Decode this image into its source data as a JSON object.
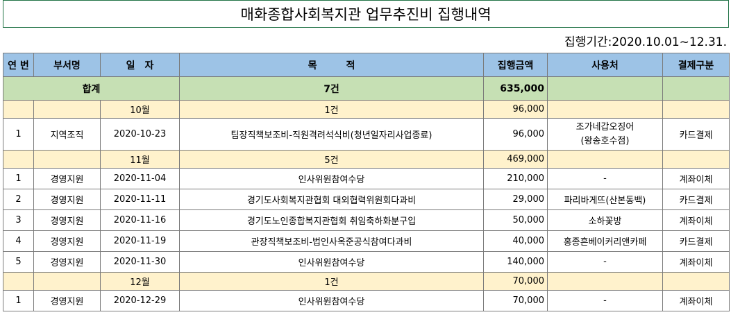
{
  "title": "매화종합사회복지관 업무추진비 집행내역",
  "period": "집행기간:2020.10.01~12.31.",
  "headers": {
    "no": "연 번",
    "dept": "부서명",
    "date": "일　자",
    "purpose": "목　　　적",
    "amount": "집행금액",
    "vendor": "사용처",
    "payment": "결제구분"
  },
  "total": {
    "label": "합계",
    "count": "7건",
    "amount": "635,000"
  },
  "months": [
    {
      "label": "10월",
      "count": "1건",
      "amount": "96,000",
      "rows": [
        {
          "no": "1",
          "dept": "지역조직",
          "date": "2020-10-23",
          "purpose": "팀장직책보조비-직원격려석식비(청년일자리사업종료)",
          "amount": "96,000",
          "vendor_line1": "조가네갑오징어",
          "vendor_line2": "(왕송호수점)",
          "payment": "카드결제"
        }
      ]
    },
    {
      "label": "11월",
      "count": "5건",
      "amount": "469,000",
      "rows": [
        {
          "no": "1",
          "dept": "경영지원",
          "date": "2020-11-04",
          "purpose": "인사위원참여수당",
          "amount": "210,000",
          "vendor": "-",
          "payment": "계좌이체"
        },
        {
          "no": "2",
          "dept": "경영지원",
          "date": "2020-11-11",
          "purpose": "경기도사회복지관협회 대외협력위원회다과비",
          "amount": "29,000",
          "vendor": "파리바게뜨(산본동백)",
          "payment": "카드결제"
        },
        {
          "no": "3",
          "dept": "경영지원",
          "date": "2020-11-16",
          "purpose": "경기도노인종합복지관협회 취임축하화분구입",
          "amount": "50,000",
          "vendor": "소하꽃방",
          "payment": "계좌이체"
        },
        {
          "no": "4",
          "dept": "경영지원",
          "date": "2020-11-19",
          "purpose": "관장직책보조비-법인사옥준공식참여다과비",
          "amount": "40,000",
          "vendor": "홍종흔베이커리앤카페",
          "payment": "카드결제"
        },
        {
          "no": "5",
          "dept": "경영지원",
          "date": "2020-11-30",
          "purpose": "인사위원참여수당",
          "amount": "140,000",
          "vendor": "-",
          "payment": "계좌이체"
        }
      ]
    },
    {
      "label": "12월",
      "count": "1건",
      "amount": "70,000",
      "rows": [
        {
          "no": "1",
          "dept": "경영지원",
          "date": "2020-12-29",
          "purpose": "인사위원참여수당",
          "amount": "70,000",
          "vendor": "-",
          "payment": "계좌이체"
        }
      ]
    }
  ]
}
